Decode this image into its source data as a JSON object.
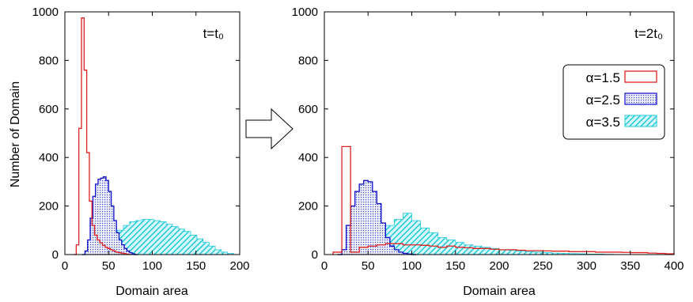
{
  "ylabel": "Number of Domain",
  "colors": {
    "red": "#e02020",
    "blue": "#1a1acc",
    "cyan": "#22d6e6",
    "cyan_fill": "#8ceef5",
    "blue_fill": "#a8b2ea",
    "axis": "#000000"
  },
  "icons": {
    "arrow": "right-arrow-icon"
  },
  "chart_data": [
    {
      "type": "bar",
      "annotation": "t=t₀",
      "xlabel": "Domain area",
      "ylabel": "Number of Domain",
      "xlim": [
        0,
        200
      ],
      "ylim": [
        0,
        1000
      ],
      "xticks": [
        0,
        50,
        100,
        150,
        200
      ],
      "yticks": [
        0,
        200,
        400,
        600,
        800,
        1000
      ],
      "grid": false,
      "series": [
        {
          "name": "α=1.5",
          "style": "step-outline",
          "bin_width": 3,
          "x": [
            10,
            13,
            16,
            19,
            22,
            25,
            28,
            31,
            34,
            37,
            40,
            43,
            46,
            49,
            52,
            55,
            58,
            61,
            64,
            67,
            70,
            73
          ],
          "values": [
            0,
            40,
            520,
            975,
            760,
            420,
            220,
            120,
            80,
            60,
            48,
            38,
            30,
            25,
            20,
            15,
            10,
            8,
            6,
            4,
            2,
            0
          ]
        },
        {
          "name": "α=2.5",
          "style": "dotted-fill",
          "bin_width": 3,
          "x": [
            20,
            23,
            26,
            29,
            32,
            35,
            38,
            41,
            44,
            47,
            50,
            53,
            56,
            59,
            62,
            65,
            68,
            71,
            74,
            77,
            80
          ],
          "values": [
            0,
            15,
            60,
            150,
            240,
            290,
            310,
            315,
            320,
            305,
            260,
            200,
            140,
            90,
            60,
            40,
            25,
            15,
            8,
            3,
            0
          ]
        },
        {
          "name": "α=3.5",
          "style": "hatched-fill",
          "bin_width": 7,
          "x": [
            25,
            32,
            39,
            46,
            53,
            60,
            67,
            74,
            81,
            88,
            95,
            102,
            109,
            116,
            123,
            130,
            137,
            144,
            151,
            158,
            165,
            172,
            179,
            186,
            193
          ],
          "values": [
            0,
            8,
            25,
            50,
            75,
            100,
            120,
            135,
            140,
            145,
            145,
            140,
            135,
            125,
            115,
            105,
            95,
            80,
            65,
            50,
            35,
            20,
            10,
            5,
            0
          ]
        }
      ]
    },
    {
      "type": "bar",
      "annotation": "t=2t₀",
      "xlabel": "Domain area",
      "xlim": [
        0,
        400
      ],
      "ylim": [
        0,
        1000
      ],
      "xticks": [
        0,
        50,
        100,
        150,
        200,
        250,
        300,
        350,
        400
      ],
      "yticks": [
        0,
        200,
        400,
        600,
        800,
        1000
      ],
      "grid": false,
      "legend_position": "top-right",
      "series": [
        {
          "name": "α=1.5",
          "style": "step-outline",
          "bin_width": 10,
          "x": [
            10,
            20,
            30,
            40,
            50,
            60,
            70,
            80,
            90,
            100,
            110,
            120,
            130,
            140,
            150,
            160,
            170,
            180,
            190,
            200,
            210,
            220,
            230,
            240,
            250,
            260,
            270,
            280,
            290,
            300,
            310,
            320,
            330,
            340,
            350,
            360,
            370,
            380,
            390
          ],
          "values": [
            10,
            445,
            10,
            30,
            35,
            40,
            45,
            45,
            40,
            40,
            38,
            35,
            30,
            35,
            30,
            28,
            25,
            25,
            22,
            20,
            20,
            18,
            16,
            16,
            15,
            14,
            14,
            12,
            12,
            12,
            10,
            10,
            10,
            9,
            8,
            8,
            6,
            5,
            3
          ]
        },
        {
          "name": "α=2.5",
          "style": "dotted-fill",
          "bin_width": 5,
          "x": [
            15,
            20,
            25,
            30,
            35,
            40,
            45,
            50,
            55,
            60,
            65,
            70,
            75,
            80,
            85,
            90,
            95,
            100
          ],
          "values": [
            0,
            20,
            120,
            200,
            260,
            290,
            305,
            300,
            260,
            210,
            130,
            70,
            35,
            20,
            10,
            5,
            2,
            0
          ]
        },
        {
          "name": "α=3.5",
          "style": "hatched-fill",
          "bin_width": 10,
          "x": [
            30,
            40,
            50,
            60,
            70,
            80,
            90,
            100,
            110,
            120,
            130,
            140,
            150,
            160,
            170,
            180,
            190,
            200,
            210,
            220,
            230,
            240,
            250,
            260,
            270,
            280,
            290,
            300,
            310,
            320,
            330
          ],
          "values": [
            10,
            30,
            60,
            90,
            120,
            145,
            170,
            140,
            110,
            90,
            70,
            60,
            50,
            40,
            35,
            30,
            25,
            20,
            18,
            15,
            12,
            10,
            8,
            6,
            5,
            4,
            3,
            2,
            2,
            1,
            0
          ]
        }
      ]
    }
  ]
}
